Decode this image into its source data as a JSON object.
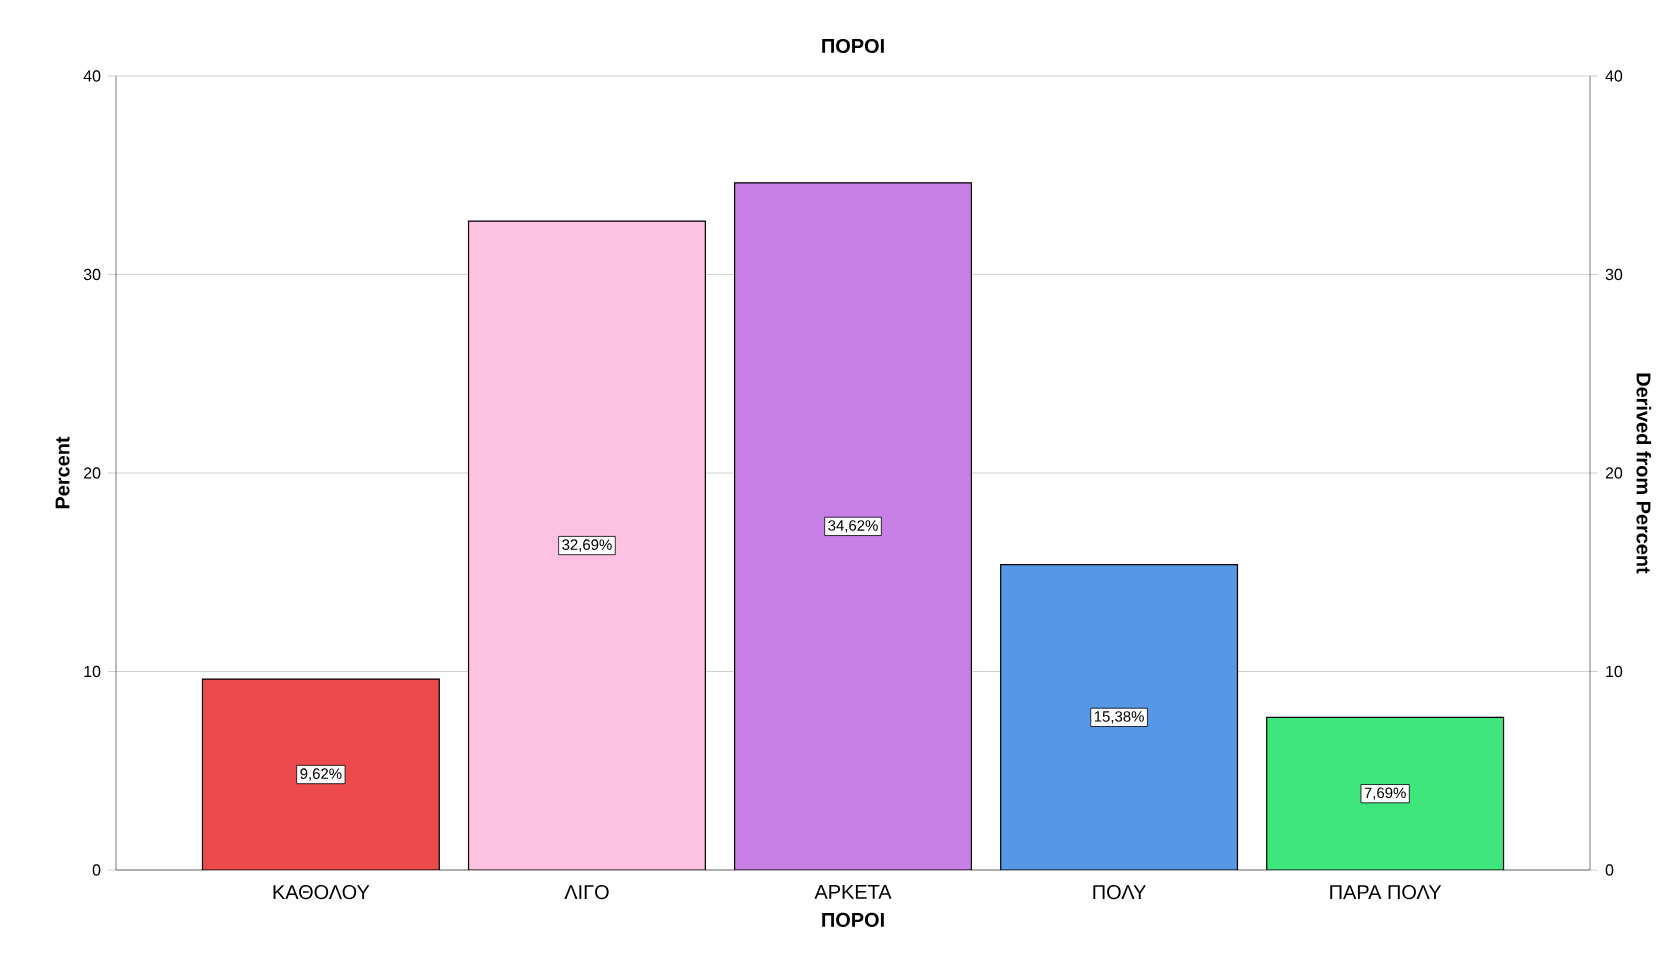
{
  "chart_data": {
    "type": "bar",
    "title": "ΠΟΡΟΙ",
    "xlabel": "ΠΟΡΟΙ",
    "ylabel": "Percent",
    "y2label": "Derived from Percent",
    "categories": [
      "ΚΑΘΟΛΟΥ",
      "ΛΙΓΟ",
      "ΑΡΚΕΤΑ",
      "ΠΟΛΥ",
      "ΠΑΡΑ ΠΟΛΥ"
    ],
    "values": [
      9.62,
      32.69,
      34.62,
      15.38,
      7.69
    ],
    "value_labels": [
      "9,62%",
      "32,69%",
      "34,62%",
      "15,38%",
      "7,69%"
    ],
    "colors": [
      "#ec4a4c",
      "#fdc2e1",
      "#c980e6",
      "#5698e6",
      "#3fe67c"
    ],
    "ylim": [
      0,
      40
    ],
    "yticks": [
      0,
      10,
      20,
      30,
      40
    ],
    "y2lim": [
      0,
      40
    ],
    "y2ticks": [
      0,
      10,
      20,
      30,
      40
    ],
    "grid": "y"
  }
}
